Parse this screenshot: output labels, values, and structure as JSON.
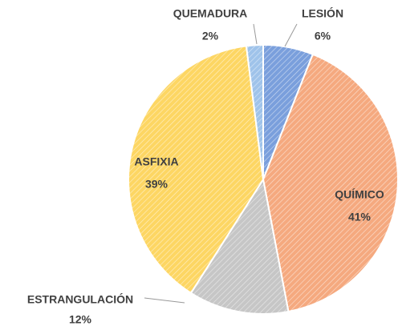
{
  "chart_data": {
    "type": "pie",
    "categories": [
      "LESIÓN",
      "QUÍMICO",
      "ESTRANGULACIÓN",
      "ASFIXIA",
      "QUEMADURA"
    ],
    "values": [
      6,
      41,
      12,
      39,
      2
    ],
    "value_labels": [
      "6%",
      "41%",
      "12%",
      "39%",
      "2%"
    ],
    "colors": [
      "#7a9fdc",
      "#f5a97f",
      "#c6c6c6",
      "#fdd663",
      "#9fc3ea"
    ]
  }
}
